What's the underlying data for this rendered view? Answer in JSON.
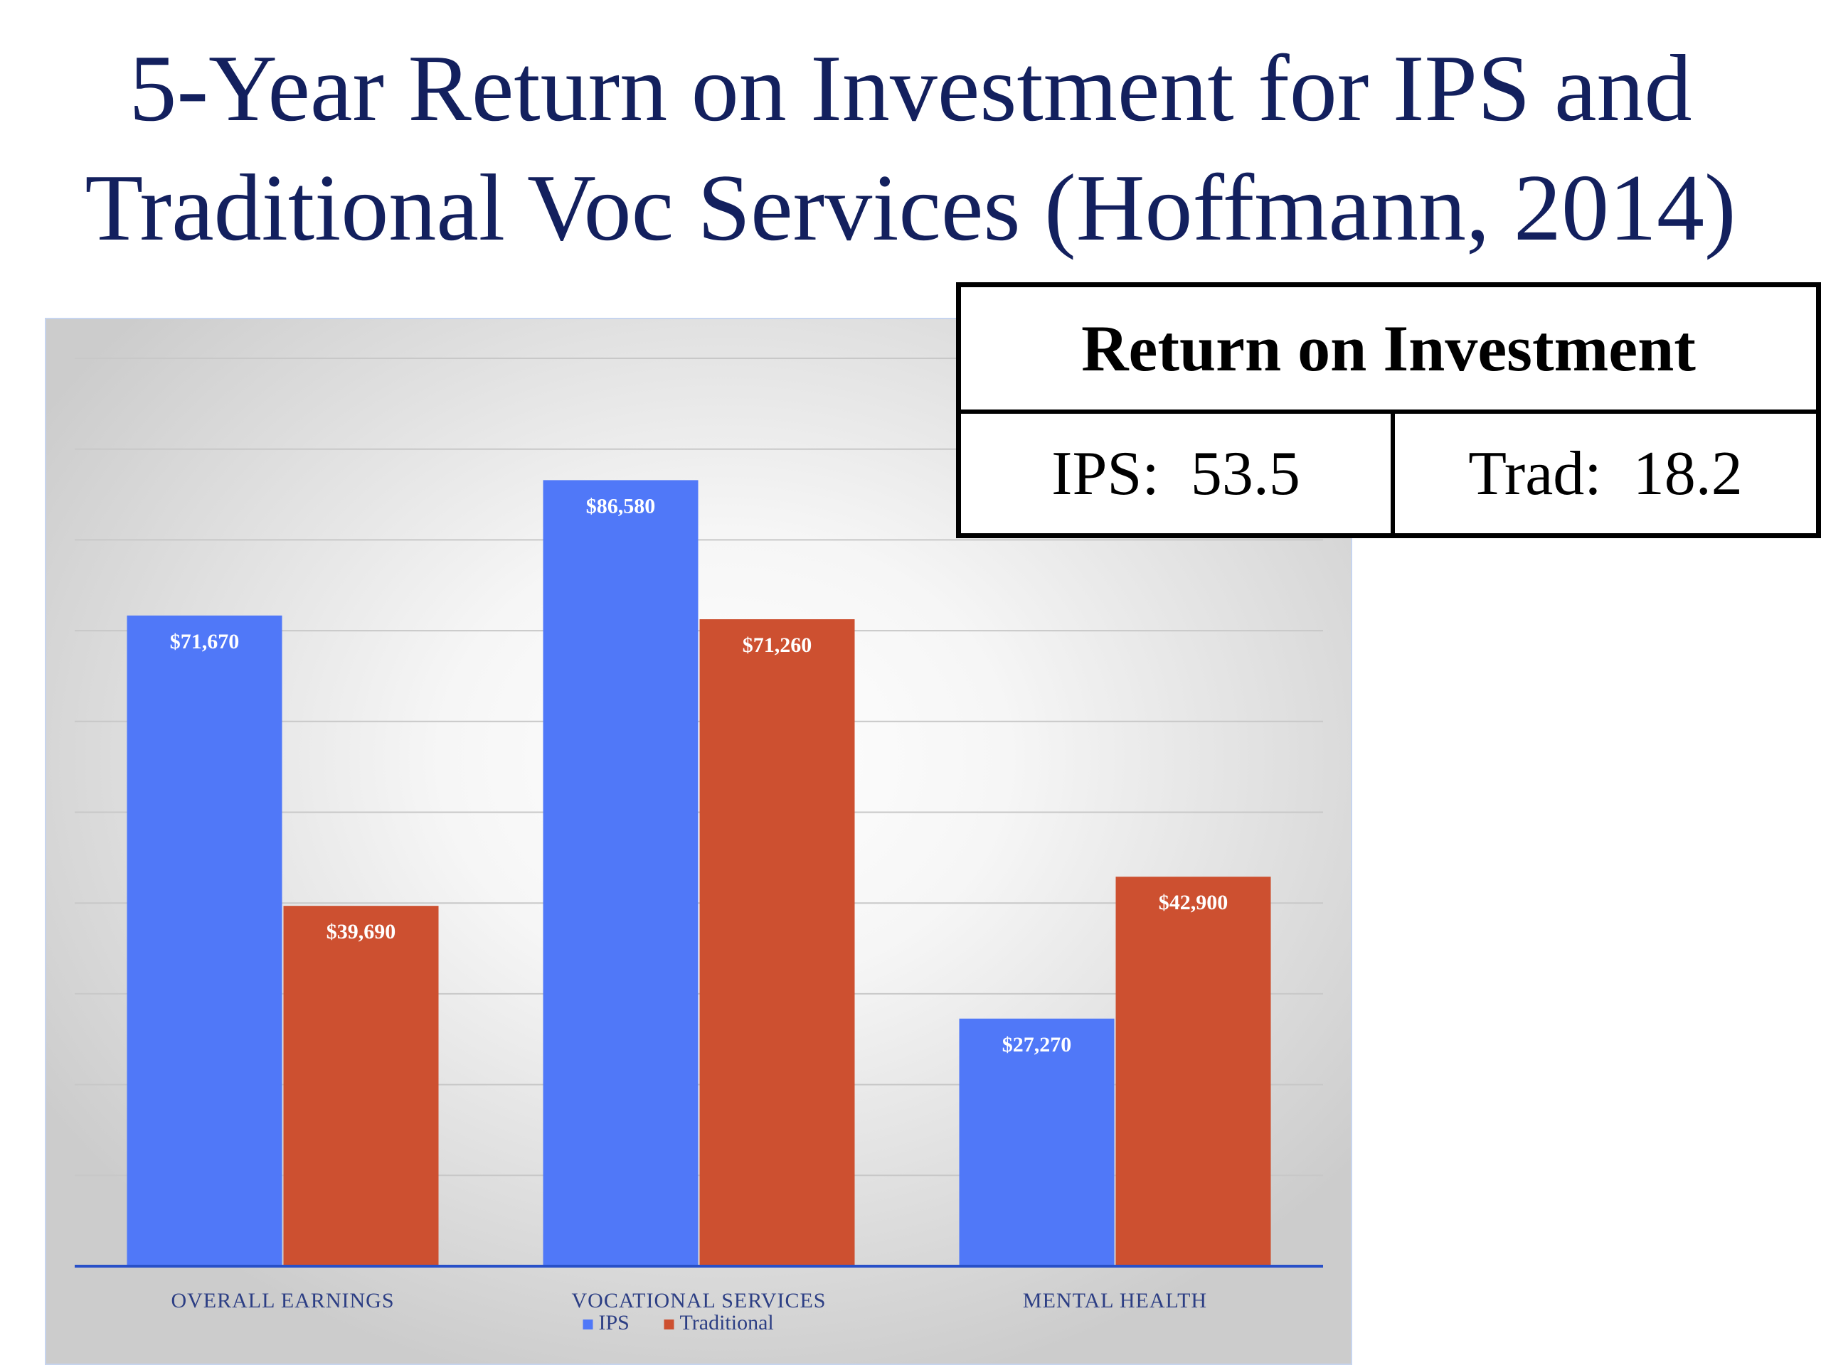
{
  "title": {
    "line1": "5-Year Return on Investment for IPS and",
    "line2": "Traditional Voc Services (Hoffmann, 2014)"
  },
  "roi_table": {
    "header": "Return on Investment",
    "ips_label": "IPS:",
    "ips_value": "53.5",
    "trad_label": "Trad:",
    "trad_value": "18.2"
  },
  "chart_data": {
    "type": "bar",
    "title": "",
    "xlabel": "",
    "ylabel": "",
    "categories": [
      "OVERALL EARNINGS",
      "VOCATIONAL SERVICES",
      "MENTAL HEALTH"
    ],
    "series": [
      {
        "name": "IPS",
        "values": [
          71670,
          86580,
          27270
        ],
        "labels": [
          "$71,670",
          "$86,580",
          "$27,270"
        ],
        "color": "#5078f8"
      },
      {
        "name": "Traditional",
        "values": [
          39690,
          71260,
          42900
        ],
        "labels": [
          "$39,690",
          "$71,260",
          "$42,900"
        ],
        "color": "#cd5030"
      }
    ],
    "ylim": [
      0,
      100000
    ],
    "gridlines": true,
    "grid_step": 10000,
    "legend": "bottom",
    "axis_color": "#2850c8"
  }
}
